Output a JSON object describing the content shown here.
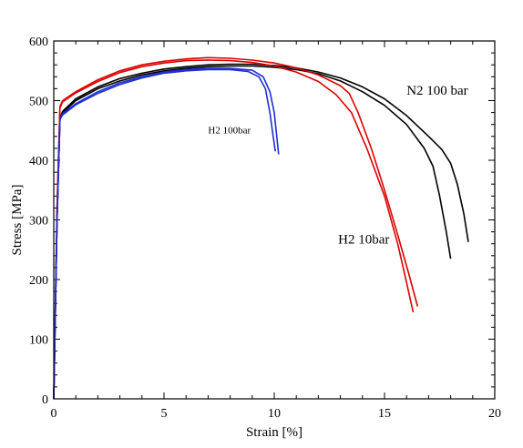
{
  "chart_data": {
    "type": "line",
    "title": "",
    "xlabel": "Strain [%]",
    "ylabel": "Stress [MPa]",
    "xlim": [
      0,
      20
    ],
    "ylim": [
      0,
      600
    ],
    "xticks": [
      0,
      5,
      10,
      15,
      20
    ],
    "yticks": [
      0,
      100,
      200,
      300,
      400,
      500,
      600
    ],
    "grid": false,
    "legend": "none",
    "annotations": [
      {
        "id": "n2",
        "text": "N2 100 bar",
        "x": 16.0,
        "y": 510,
        "size": 15
      },
      {
        "id": "h2-10",
        "text": "H2 10bar",
        "x": 12.9,
        "y": 260,
        "size": 15
      },
      {
        "id": "h2-100",
        "text": "H2 100bar",
        "x": 7.0,
        "y": 445,
        "size": 11
      }
    ],
    "series": [
      {
        "color": "#000000",
        "x": [
          0,
          0.15,
          0.28,
          0.4,
          1,
          2,
          3,
          4,
          5,
          6,
          7,
          8,
          9,
          10,
          11,
          12,
          13,
          14,
          15,
          16,
          16.8,
          17.2,
          17.5,
          17.8,
          18.0
        ],
        "y": [
          0,
          300,
          470,
          480,
          500,
          520,
          533,
          543,
          550,
          554,
          557,
          558,
          558,
          556,
          552,
          545,
          533,
          515,
          492,
          460,
          420,
          390,
          340,
          280,
          235
        ]
      },
      {
        "color": "#000000",
        "x": [
          0,
          0.15,
          0.28,
          0.4,
          1,
          2,
          3,
          4,
          5,
          6,
          7,
          8,
          9,
          10,
          11,
          12,
          13,
          14,
          15,
          16,
          17,
          17.6,
          18.0,
          18.3,
          18.6,
          18.8
        ],
        "y": [
          0,
          300,
          470,
          482,
          503,
          523,
          537,
          546,
          553,
          557,
          560,
          561,
          561,
          559,
          555,
          548,
          538,
          523,
          503,
          475,
          440,
          418,
          395,
          360,
          310,
          263
        ]
      },
      {
        "color": "#dd0000",
        "x": [
          0,
          0.15,
          0.28,
          0.4,
          1,
          2,
          3,
          4,
          5,
          6,
          7,
          8,
          9,
          10,
          11,
          12,
          12.8,
          13.5,
          14.2,
          15,
          15.6,
          16.0,
          16.3
        ],
        "y": [
          0,
          320,
          488,
          498,
          513,
          532,
          547,
          557,
          563,
          567,
          568,
          567,
          564,
          558,
          548,
          532,
          510,
          480,
          420,
          340,
          260,
          195,
          145
        ]
      },
      {
        "color": "#dd0000",
        "x": [
          0,
          0.15,
          0.28,
          0.4,
          1,
          2,
          3,
          4,
          5,
          6,
          7,
          8,
          9,
          10,
          11,
          12,
          13,
          13.4,
          13.8,
          14.4,
          15,
          15.6,
          16.1,
          16.5
        ],
        "y": [
          0,
          320,
          490,
          500,
          515,
          535,
          550,
          560,
          566,
          570,
          572,
          571,
          568,
          563,
          555,
          543,
          525,
          512,
          480,
          420,
          350,
          275,
          210,
          155
        ]
      },
      {
        "color": "#1f2fd0",
        "x": [
          0,
          0.15,
          0.28,
          0.4,
          1,
          2,
          3,
          4,
          5,
          6,
          7,
          8,
          8.8,
          9.3,
          9.6,
          9.8,
          9.95,
          10.05
        ],
        "y": [
          0,
          300,
          468,
          476,
          493,
          512,
          527,
          538,
          546,
          550,
          552,
          552,
          549,
          540,
          520,
          480,
          440,
          415
        ]
      },
      {
        "color": "#1f2fd0",
        "x": [
          0,
          0.15,
          0.28,
          0.4,
          1,
          2,
          3,
          4,
          5,
          6,
          7,
          8,
          9,
          9.5,
          9.8,
          10.0,
          10.1,
          10.2
        ],
        "y": [
          0,
          300,
          470,
          478,
          495,
          515,
          530,
          540,
          548,
          552,
          554,
          554,
          551,
          540,
          515,
          480,
          445,
          410
        ]
      }
    ]
  }
}
